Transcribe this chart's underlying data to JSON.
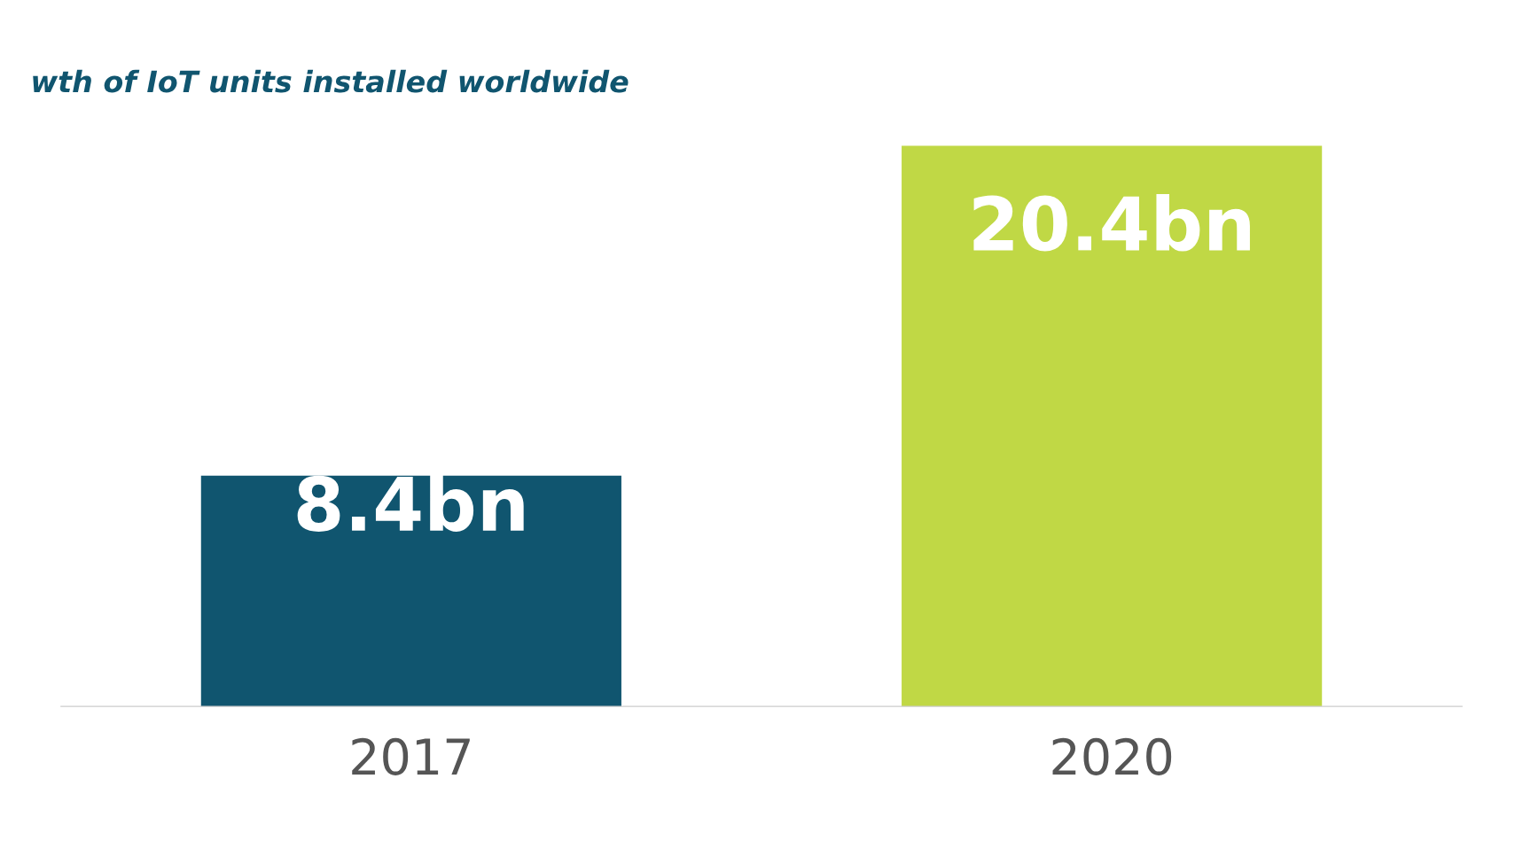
{
  "chart_data": {
    "type": "bar",
    "title": "wth of IoT units installed worldwide",
    "categories": [
      "2017",
      "2020"
    ],
    "values": [
      8.4,
      20.4
    ],
    "colors": [
      "#10556f",
      "#c0d845"
    ],
    "value_labels": [
      "8.4bn",
      "20.4bn"
    ],
    "grid": false,
    "legend": false
  }
}
